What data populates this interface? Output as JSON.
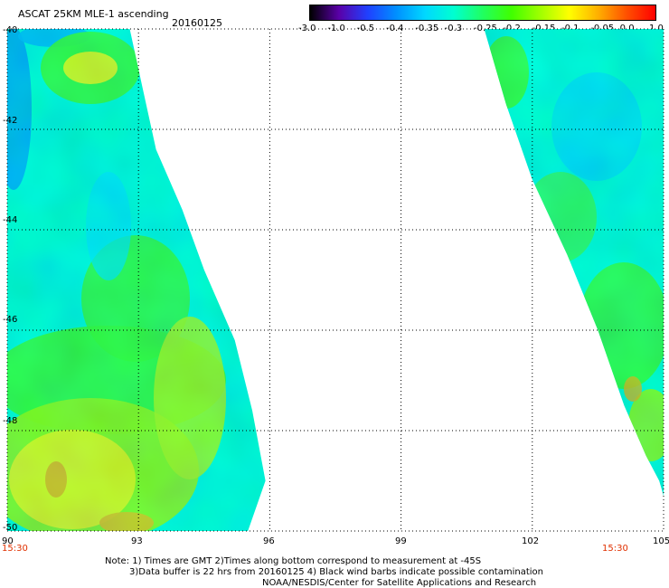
{
  "header": {
    "title": "ASCAT 25KM MLE-1 ascending",
    "date": "20160125"
  },
  "colorbar": {
    "labels": [
      "-3.0",
      "-1.0",
      "-0.5",
      "-0.4",
      "-0.35",
      "-0.3",
      "-0.25",
      "-0.2",
      "-0.15",
      "-0.1",
      "-0.05",
      "0.0",
      "1.0"
    ],
    "colors": [
      "#000000",
      "#5a00a8",
      "#2040ff",
      "#0090ff",
      "#00d8ff",
      "#00ffd0",
      "#20ff60",
      "#40ff00",
      "#a0ff00",
      "#ffff00",
      "#ffb000",
      "#ff5000",
      "#ff0000"
    ]
  },
  "axes": {
    "lat_labels": [
      "-40",
      "-42",
      "-44",
      "-46",
      "-48",
      "-50"
    ],
    "lon_labels": [
      "90",
      "93",
      "96",
      "99",
      "102",
      "105"
    ],
    "time_left": "15:30",
    "time_right": "15:30"
  },
  "notes": {
    "line1": "Note: 1) Times are GMT 2)Times along bottom correspond to measurement at -45S",
    "line2": "3)Data buffer is 22 hrs from 20160125 4) Black wind barbs indicate possible contamination",
    "line3": "NOAA/NESDIS/Center for Satellite Applications and Research"
  },
  "map_data": {
    "lat_range": [
      -50,
      -40
    ],
    "lon_range": [
      90,
      105
    ],
    "swaths": [
      {
        "name": "west-swath",
        "west_lon": 90,
        "east_edge": [
          [
            -40,
            92.8
          ],
          [
            -41.2,
            93.1
          ],
          [
            -42.4,
            93.4
          ],
          [
            -43.6,
            94.0
          ],
          [
            -44.8,
            94.5
          ],
          [
            -46.2,
            95.2
          ],
          [
            -47.6,
            95.6
          ],
          [
            -49.0,
            95.9
          ],
          [
            -50,
            95.5
          ]
        ]
      },
      {
        "name": "east-swath",
        "east_lon": 105,
        "west_edge": [
          [
            -40,
            100.9
          ],
          [
            -41.5,
            101.4
          ],
          [
            -43.0,
            102.0
          ],
          [
            -44.5,
            102.8
          ],
          [
            -46.0,
            103.5
          ],
          [
            -47.5,
            104.1
          ],
          [
            -48.5,
            104.6
          ],
          [
            -49.0,
            104.9
          ]
        ]
      }
    ]
  }
}
